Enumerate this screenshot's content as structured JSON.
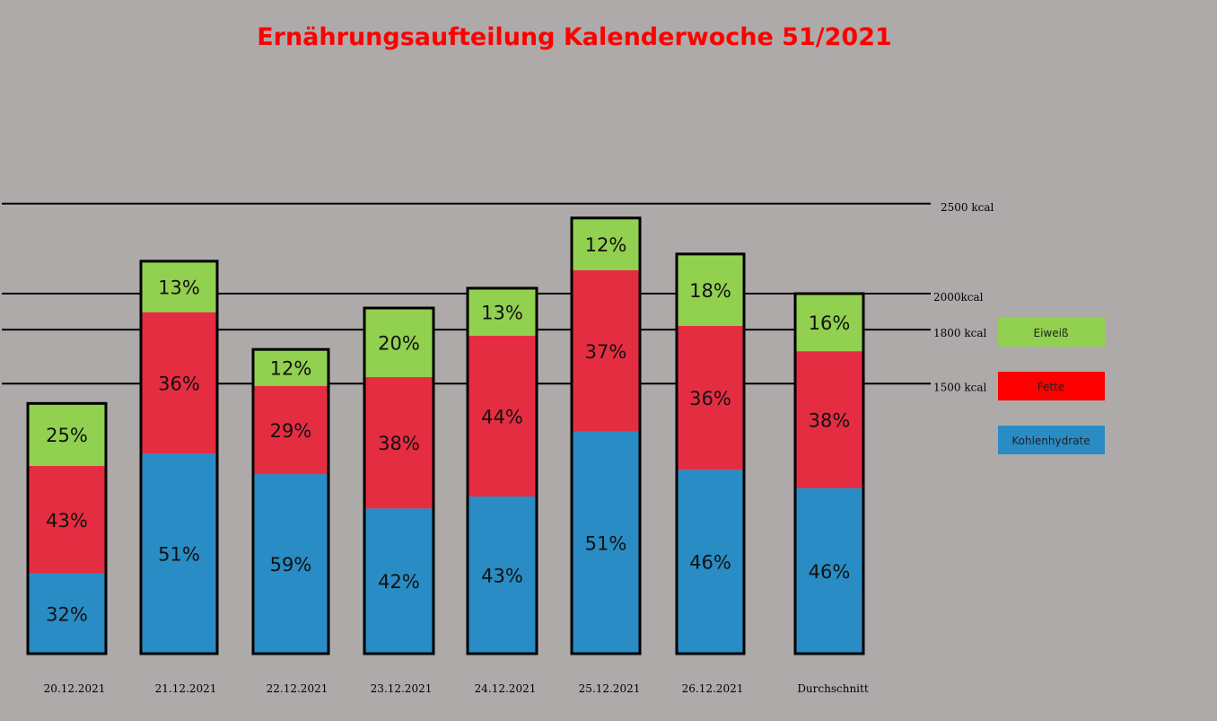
{
  "chart_data": {
    "type": "bar",
    "stacked": true,
    "title": "Ernährungsaufteilung Kalenderwoche 51/2021",
    "categories": [
      "20.12.2021",
      "21.12.2021",
      "22.12.2021",
      "23.12.2021",
      "24.12.2021",
      "25.12.2021",
      "26.12.2021",
      "Durchschnitt"
    ],
    "total_kcal": [
      1390,
      2180,
      1690,
      1920,
      2030,
      2420,
      2220,
      2000
    ],
    "series": [
      {
        "name": "Kohlenhydrate",
        "color": "#2a8cc4",
        "values": [
          32,
          51,
          59,
          42,
          43,
          51,
          46,
          46
        ],
        "labels": [
          "32%",
          "51%",
          "59%",
          "42%",
          "43%",
          "51%",
          "46%",
          "46%"
        ]
      },
      {
        "name": "Fette",
        "color": "#e52d42",
        "legend_color": "#ff0000",
        "values": [
          43,
          36,
          29,
          38,
          44,
          37,
          36,
          38
        ],
        "labels": [
          "43%",
          "36%",
          "29%",
          "38%",
          "44%",
          "37%",
          "36%",
          "38%"
        ]
      },
      {
        "name": "Eiweiß",
        "color": "#92d050",
        "values": [
          25,
          13,
          12,
          20,
          13,
          12,
          18,
          16
        ],
        "labels": [
          "25%",
          "13%",
          "12%",
          "20%",
          "13%",
          "12%",
          "18%",
          "16%"
        ]
      }
    ],
    "reference_lines": [
      {
        "value": 2500,
        "label": "2500 kcal"
      },
      {
        "value": 2000,
        "label": "2000kcal"
      },
      {
        "value": 1800,
        "label": "1800 kcal"
      },
      {
        "value": 1500,
        "label": "1500 kcal"
      }
    ],
    "ylim": [
      0,
      2500
    ],
    "legend_position": "right",
    "background": "#aeaaaa",
    "grid": false
  }
}
